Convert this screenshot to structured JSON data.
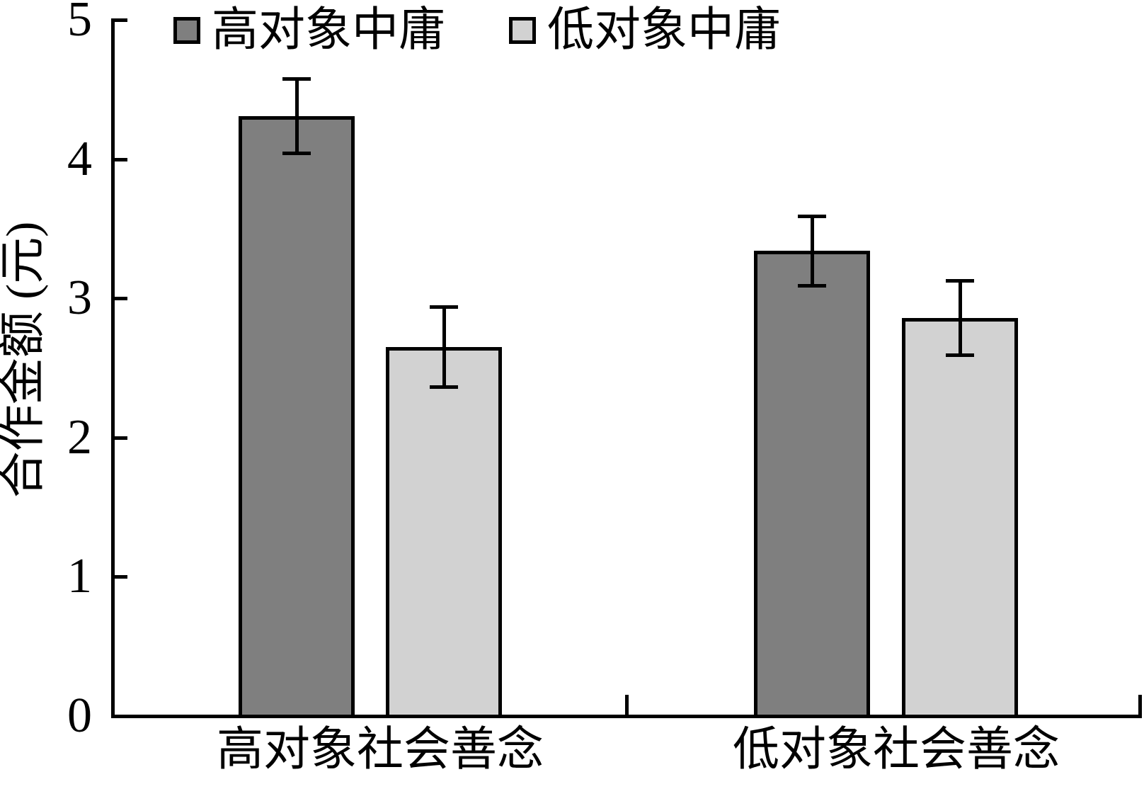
{
  "chart_data": {
    "type": "bar",
    "title": "",
    "ylabel": "合作金额 (元)",
    "xlabel": "",
    "ylim": [
      0,
      5
    ],
    "yticks": [
      0,
      1,
      2,
      3,
      4,
      5
    ],
    "categories": [
      "高对象社会善念",
      "低对象社会善念"
    ],
    "series": [
      {
        "name": "高对象中庸",
        "color": "#7f7f7f",
        "values": [
          4.31,
          3.34
        ],
        "errors": [
          0.27,
          0.25
        ]
      },
      {
        "name": "低对象中庸",
        "color": "#d2d2d2",
        "values": [
          2.65,
          2.86
        ],
        "errors": [
          0.29,
          0.27
        ]
      }
    ],
    "error_bars": true,
    "grid": false,
    "legend_position": "top-left",
    "axis_color": "#000000",
    "background": "#ffffff"
  }
}
